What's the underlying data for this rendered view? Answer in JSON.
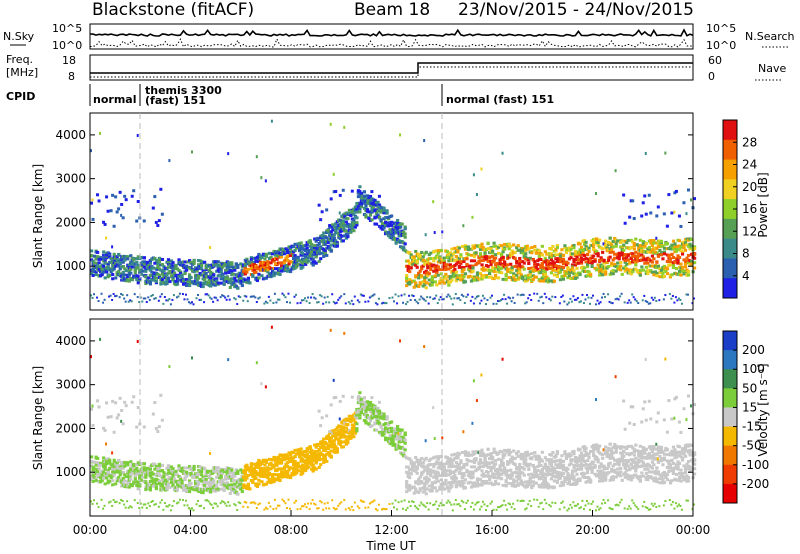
{
  "header": {
    "station": "Blackstone (fitACF)",
    "beam": "Beam 18",
    "date_range": "23/Nov/2015 - 24/Nov/2015"
  },
  "noise_panel": {
    "left_label": "N.Sky",
    "right_label": "N.Search",
    "left_ticks": [
      "10^5",
      "10^0"
    ],
    "right_ticks": [
      "10^5",
      "10^0"
    ]
  },
  "freq_panel": {
    "left_label_1": "Freq.",
    "left_label_2": "[MHz]",
    "left_ticks": [
      "18",
      "8"
    ],
    "right_label": "Nave",
    "right_ticks": [
      "60",
      "0"
    ]
  },
  "cpid": {
    "label": "CPID",
    "segments": [
      {
        "start_hour": 0,
        "text": "normal"
      },
      {
        "start_hour": 2,
        "text": "themis 3300",
        "text2": "(fast) 151"
      },
      {
        "start_hour": 14,
        "text": "normal (fast) 151"
      }
    ]
  },
  "chart_data": [
    {
      "type": "heatmap",
      "title": "",
      "ylabel": "Slant Range [km]",
      "xlabel": "",
      "xlim_hours": [
        0,
        24
      ],
      "ylim": [
        0,
        4500
      ],
      "yticks": [
        "1000",
        "2000",
        "3000",
        "4000"
      ],
      "colorbar": {
        "label": "Power [dB]",
        "ticks": [
          "4",
          "8",
          "12",
          "16",
          "20",
          "24",
          "28"
        ],
        "colors": [
          "#1f1fe6",
          "#2b5fb0",
          "#3a8a8a",
          "#55a055",
          "#8ecf2a",
          "#f0d020",
          "#f5a000",
          "#f06000",
          "#e01010"
        ]
      }
    },
    {
      "type": "heatmap",
      "title": "",
      "ylabel": "Slant Range [km]",
      "xlabel": "Time UT",
      "xlim_hours": [
        0,
        24
      ],
      "ylim": [
        0,
        4500
      ],
      "yticks": [
        "1000",
        "2000",
        "3000",
        "4000"
      ],
      "xticks": [
        "00:00",
        "04:00",
        "08:00",
        "12:00",
        "16:00",
        "20:00",
        "00:00"
      ],
      "colorbar": {
        "label": "Velocity [m s⁻¹]",
        "ticks": [
          "200",
          "100",
          "50",
          "15",
          "-15",
          "-50",
          "-100",
          "-200"
        ],
        "colors": [
          "#1a3ec8",
          "#2b78c0",
          "#3c8f4f",
          "#7ccd3a",
          "#c8c8c8",
          "#f5b800",
          "#f07800",
          "#f03c00",
          "#e60000"
        ]
      }
    }
  ]
}
